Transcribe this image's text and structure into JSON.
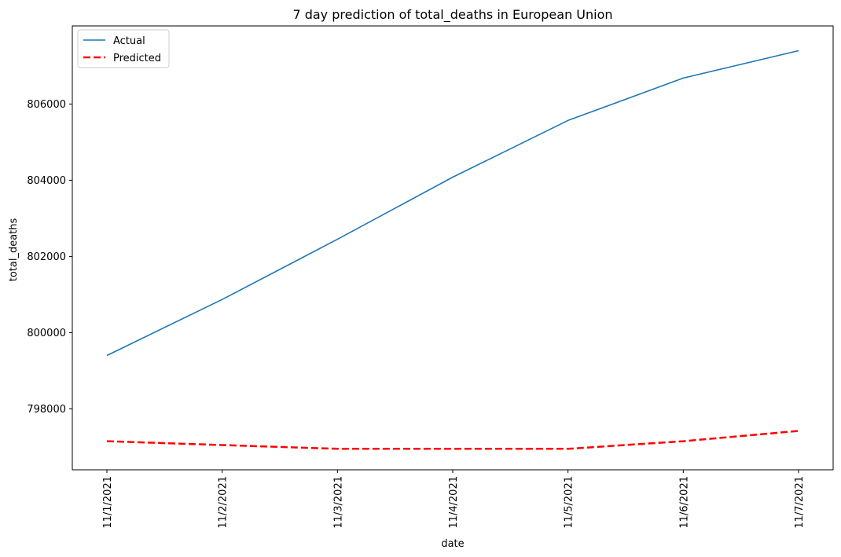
{
  "chart_data": {
    "type": "line",
    "title": "7 day prediction of total_deaths in European Union",
    "xlabel": "date",
    "ylabel": "total_deaths",
    "x": [
      "11/1/2021",
      "11/2/2021",
      "11/3/2021",
      "11/4/2021",
      "11/5/2021",
      "11/6/2021",
      "11/7/2021"
    ],
    "yticks": [
      798000,
      800000,
      802000,
      804000,
      806000
    ],
    "ylim": [
      796400,
      808050
    ],
    "series": [
      {
        "name": "Actual",
        "color": "#1f77b4",
        "style": "solid",
        "values": [
          799400,
          800870,
          802450,
          804080,
          805570,
          806680,
          807400
        ]
      },
      {
        "name": "Predicted",
        "color": "#ff0000",
        "style": "dashed",
        "values": [
          797150,
          797050,
          796950,
          796950,
          796950,
          797150,
          797420
        ]
      }
    ],
    "legend": {
      "position": "top-left"
    },
    "grid": false
  }
}
